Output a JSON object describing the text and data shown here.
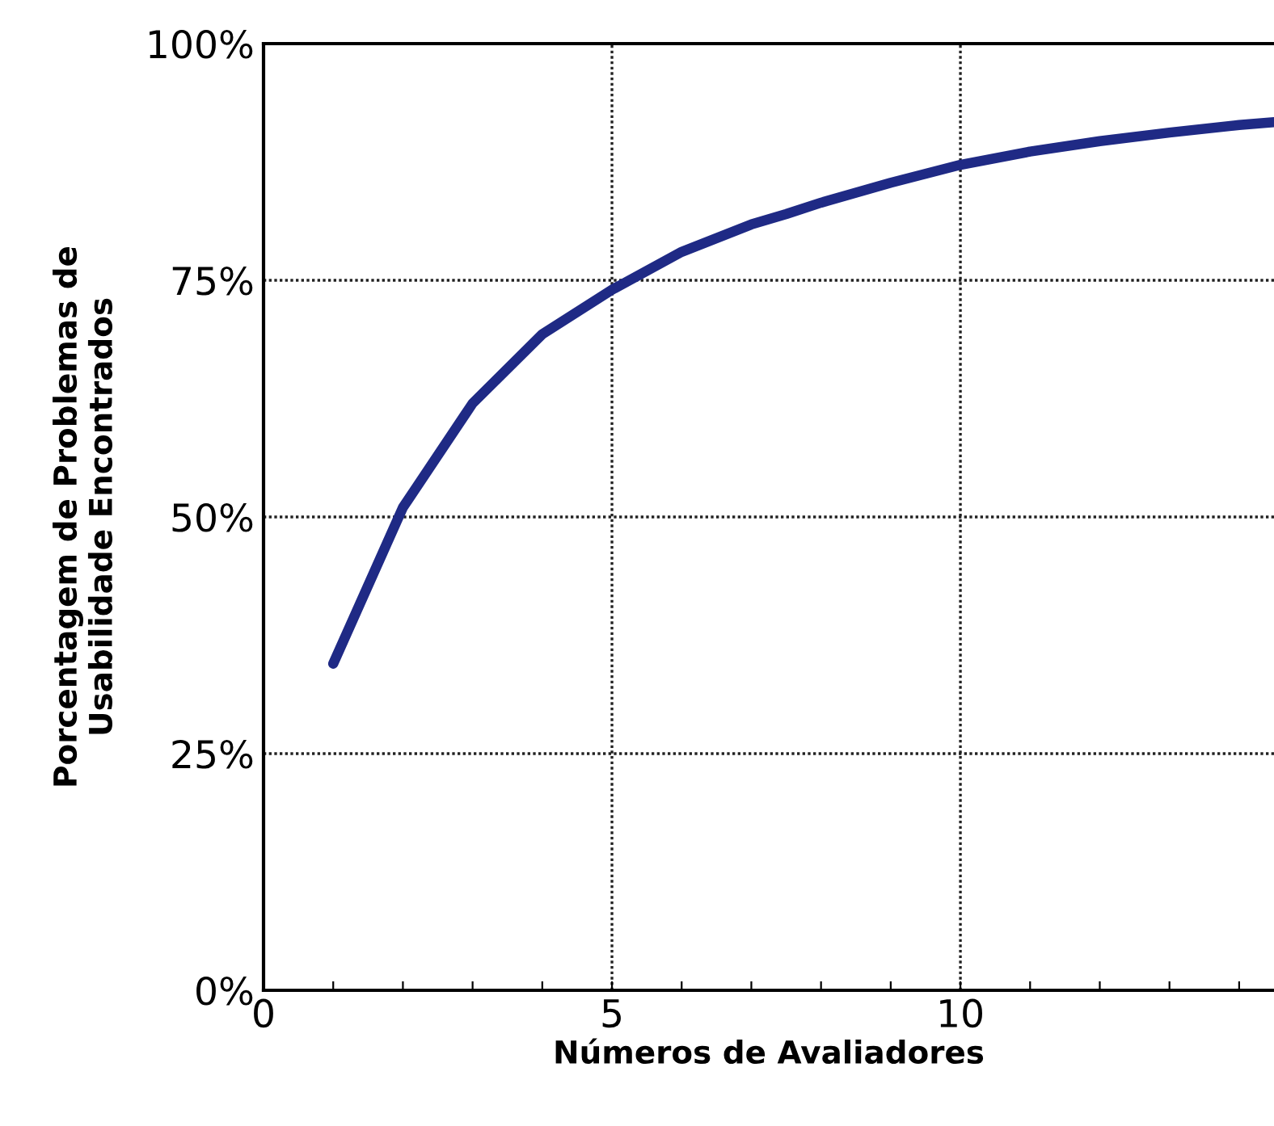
{
  "chart_data": {
    "type": "line",
    "xlabel": "Números de Avaliadores",
    "ylabel": "Porcentagem de Problemas de\nUsabilidade Encontrados",
    "x": [
      1,
      2,
      3,
      4,
      5,
      6,
      7,
      7.5,
      8,
      9,
      10,
      11,
      12,
      13,
      14,
      14.5
    ],
    "series": [
      {
        "color": "#1f2a85",
        "values": [
          34.5,
          51,
          62,
          69.3,
          74,
          78,
          80.9,
          82,
          83.2,
          85.3,
          87.2,
          88.6,
          89.7,
          90.6,
          91.4,
          91.7
        ]
      }
    ],
    "xlim": [
      0,
      14.5
    ],
    "xticks": [
      0,
      {
        "value": 1,
        "label": null
      },
      {
        "value": 2,
        "label": null
      },
      {
        "value": 3,
        "label": null
      },
      {
        "value": 4,
        "label": null
      },
      5,
      {
        "value": 6,
        "label": null
      },
      {
        "value": 7,
        "label": null
      },
      {
        "value": 8,
        "label": null
      },
      {
        "value": 9,
        "label": null
      },
      10,
      {
        "value": 11,
        "label": null
      },
      {
        "value": 12,
        "label": null
      },
      {
        "value": 13,
        "label": null
      },
      {
        "value": 14,
        "label": null
      }
    ],
    "ylim": [
      0,
      100
    ],
    "yticks": [
      {
        "value": 0,
        "label": "0%"
      },
      {
        "value": 25,
        "label": "25%"
      },
      {
        "value": 50,
        "label": "50%"
      },
      {
        "value": 75,
        "label": "75%"
      },
      {
        "value": 100,
        "label": "100%"
      }
    ],
    "grid": true,
    "marker": "none",
    "line_style": "solid"
  }
}
